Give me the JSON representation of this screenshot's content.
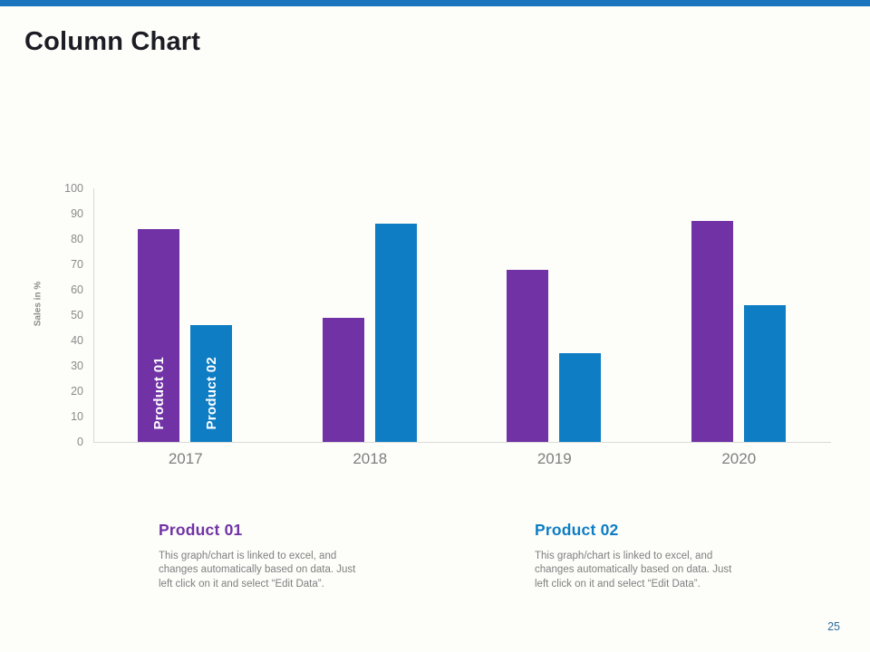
{
  "slide": {
    "title": "Column Chart",
    "page_number": "25",
    "accent_bar_color": "#1B74BE"
  },
  "chart_data": {
    "type": "bar",
    "title": "",
    "categories": [
      "2017",
      "2018",
      "2019",
      "2020"
    ],
    "series": [
      {
        "name": "Product 01",
        "color": "#7132A5",
        "values": [
          84,
          49,
          68,
          87
        ]
      },
      {
        "name": "Product 02",
        "color": "#0E7DC3",
        "values": [
          46,
          86,
          35,
          54
        ]
      }
    ],
    "xlabel": "",
    "ylabel": "Sales in %",
    "ylim": [
      0,
      100
    ],
    "yticks": [
      0,
      10,
      20,
      30,
      40,
      50,
      60,
      70,
      80,
      90,
      100
    ],
    "grid": false,
    "legend_position": "labels-inside-first-bars",
    "axis_color": "#D9D9D9",
    "tick_label_color": "#8A8A8A"
  },
  "footer": {
    "columns": [
      {
        "heading": "Product 01",
        "heading_color": "#7132A5",
        "body": "This graph/chart is linked to excel, and changes automatically based on data. Just left click on it and select “Edit Data”."
      },
      {
        "heading": "Product 02",
        "heading_color": "#0E7DC3",
        "body": "This graph/chart is linked to excel, and changes automatically based on data. Just left click on it and select “Edit Data”."
      }
    ]
  }
}
